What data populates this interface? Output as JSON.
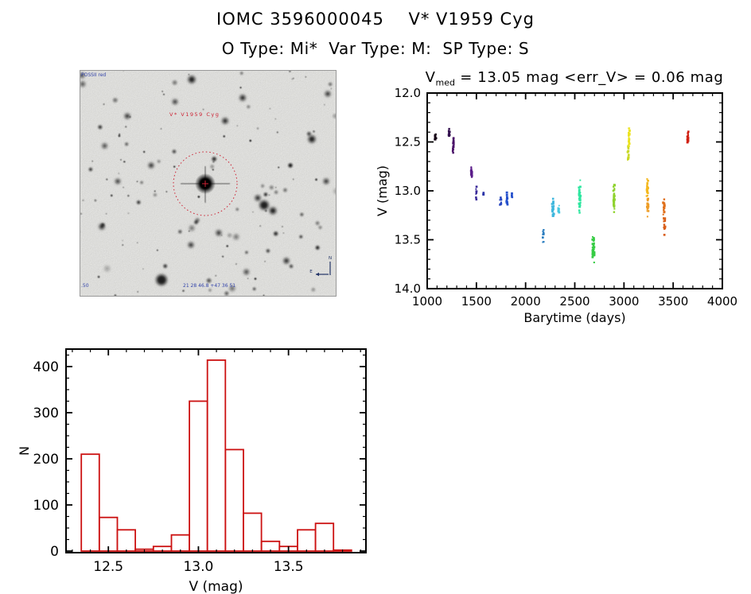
{
  "header": {
    "title": "IOMC 3596000045    V* V1959 Cyg",
    "subtitle": "O Type: Mi*  Var Type: M:  SP Type: S"
  },
  "lightcurve_title": {
    "v": "V",
    "sub": "med",
    "rest": " = 13.05 mag <err_V> = 0.06 mag"
  },
  "finding_chart": {
    "survey_label": "POSSII red",
    "source_label": "V* V1959 Cyg",
    "coords_label": "21 28 46.8 +47 36 51",
    "corner_label": ".50",
    "compass_east": "E",
    "compass_north": "N",
    "overlay_color": "#cc2233",
    "annotation_color": "#3344aa"
  },
  "chart_data": [
    {
      "type": "scatter",
      "name": "lightcurve",
      "title": "Vmed = 13.05 mag <err_V> = 0.06 mag",
      "xlabel": "Barytime (days)",
      "ylabel": "V (mag)",
      "xlim": [
        1000,
        4000
      ],
      "ylim": [
        14.0,
        12.0
      ],
      "y_axis_inverted": true,
      "grid": false,
      "xticks": [
        1000,
        1500,
        2000,
        2500,
        3000,
        3500,
        4000
      ],
      "xtick_labels": [
        "1000",
        "1500",
        "2000",
        "2500",
        "3000",
        "3500",
        "4000"
      ],
      "yticks": [
        12.0,
        12.5,
        13.0,
        13.5,
        14.0
      ],
      "ytick_labels": [
        "12.0",
        "12.5",
        "13.0",
        "13.5",
        "14.0"
      ],
      "x_minor_step": 100,
      "y_minor_step": 0.1,
      "clusters": [
        {
          "t": 1085,
          "dt": 8,
          "v1": 12.42,
          "v2": 12.5,
          "n": 10,
          "color": "#150515"
        },
        {
          "t": 1225,
          "dt": 6,
          "v1": 12.36,
          "v2": 12.46,
          "n": 12,
          "color": "#33104f"
        },
        {
          "t": 1265,
          "dt": 7,
          "v1": 12.44,
          "v2": 12.62,
          "n": 16,
          "color": "#4a1168"
        },
        {
          "t": 1450,
          "dt": 6,
          "v1": 12.72,
          "v2": 12.89,
          "n": 16,
          "color": "#5b1d8a"
        },
        {
          "t": 1500,
          "dt": 6,
          "v1": 12.95,
          "v2": 13.1,
          "n": 9,
          "color": "#3a2a9a"
        },
        {
          "t": 1575,
          "dt": 4,
          "v1": 13.01,
          "v2": 13.06,
          "n": 3,
          "color": "#2c35a8"
        },
        {
          "t": 1745,
          "dt": 7,
          "v1": 13.05,
          "v2": 13.17,
          "n": 8,
          "color": "#2746c0"
        },
        {
          "t": 1810,
          "dt": 7,
          "v1": 12.95,
          "v2": 13.2,
          "n": 13,
          "color": "#2450cc"
        },
        {
          "t": 1862,
          "dt": 4,
          "v1": 13.02,
          "v2": 13.08,
          "n": 4,
          "color": "#2450cc"
        },
        {
          "t": 2180,
          "dt": 6,
          "v1": 13.38,
          "v2": 13.56,
          "n": 9,
          "color": "#2e7fc0"
        },
        {
          "t": 2278,
          "dt": 9,
          "v1": 13.04,
          "v2": 13.3,
          "n": 28,
          "color": "#3fb7dd"
        },
        {
          "t": 2335,
          "dt": 6,
          "v1": 13.14,
          "v2": 13.23,
          "n": 10,
          "color": "#46c8e0"
        },
        {
          "t": 2550,
          "dt": 8,
          "v1": 12.85,
          "v2": 13.25,
          "n": 45,
          "color": "#2ee6a0"
        },
        {
          "t": 2690,
          "dt": 9,
          "v1": 13.44,
          "v2": 13.76,
          "n": 40,
          "color": "#37cc45"
        },
        {
          "t": 2898,
          "dt": 7,
          "v1": 12.88,
          "v2": 13.26,
          "n": 35,
          "color": "#8fd32e"
        },
        {
          "t": 3042,
          "dt": 6,
          "v1": 12.52,
          "v2": 12.7,
          "n": 14,
          "color": "#c9d926"
        },
        {
          "t": 3052,
          "dt": 6,
          "v1": 12.35,
          "v2": 12.56,
          "n": 18,
          "color": "#ece31f"
        },
        {
          "t": 3238,
          "dt": 7,
          "v1": 12.86,
          "v2": 13.1,
          "n": 22,
          "color": "#f4b81e"
        },
        {
          "t": 3242,
          "dt": 7,
          "v1": 13.05,
          "v2": 13.32,
          "n": 16,
          "color": "#ee9d26"
        },
        {
          "t": 3405,
          "dt": 7,
          "v1": 13.05,
          "v2": 13.35,
          "n": 20,
          "color": "#e0701c"
        },
        {
          "t": 3412,
          "dt": 7,
          "v1": 13.25,
          "v2": 13.5,
          "n": 12,
          "color": "#d95e18"
        },
        {
          "t": 3650,
          "dt": 5,
          "v1": 12.38,
          "v2": 12.56,
          "n": 16,
          "color": "#d01f10"
        }
      ]
    },
    {
      "type": "bar",
      "name": "histogram",
      "xlabel": "V (mag)",
      "ylabel": "N",
      "bin_start": 12.35,
      "bin_width": 0.1,
      "categories": [
        "12.35-12.45",
        "12.45-12.55",
        "12.55-12.65",
        "12.65-12.75",
        "12.75-12.85",
        "12.85-12.95",
        "12.95-13.05",
        "13.05-13.15",
        "13.15-13.25",
        "13.25-13.35",
        "13.35-13.45",
        "13.45-13.55",
        "13.55-13.65",
        "13.65-13.75",
        "13.75-13.85"
      ],
      "values": [
        210,
        73,
        46,
        4,
        10,
        35,
        325,
        414,
        220,
        82,
        21,
        10,
        46,
        60,
        2
      ],
      "xticks": [
        12.5,
        13.0,
        13.5
      ],
      "xtick_labels": [
        "12.5",
        "13.0",
        "13.5"
      ],
      "yticks": [
        0,
        100,
        200,
        300,
        400
      ],
      "ytick_labels": [
        "0",
        "100",
        "200",
        "300",
        "400"
      ],
      "x_minor_step": 0.1,
      "y_minor_step": 25,
      "xlim": [
        12.265,
        13.93
      ],
      "ylim": [
        0,
        438
      ],
      "grid": false,
      "bar_color": "#cc1111",
      "bar_fill": "#ffffff"
    }
  ]
}
